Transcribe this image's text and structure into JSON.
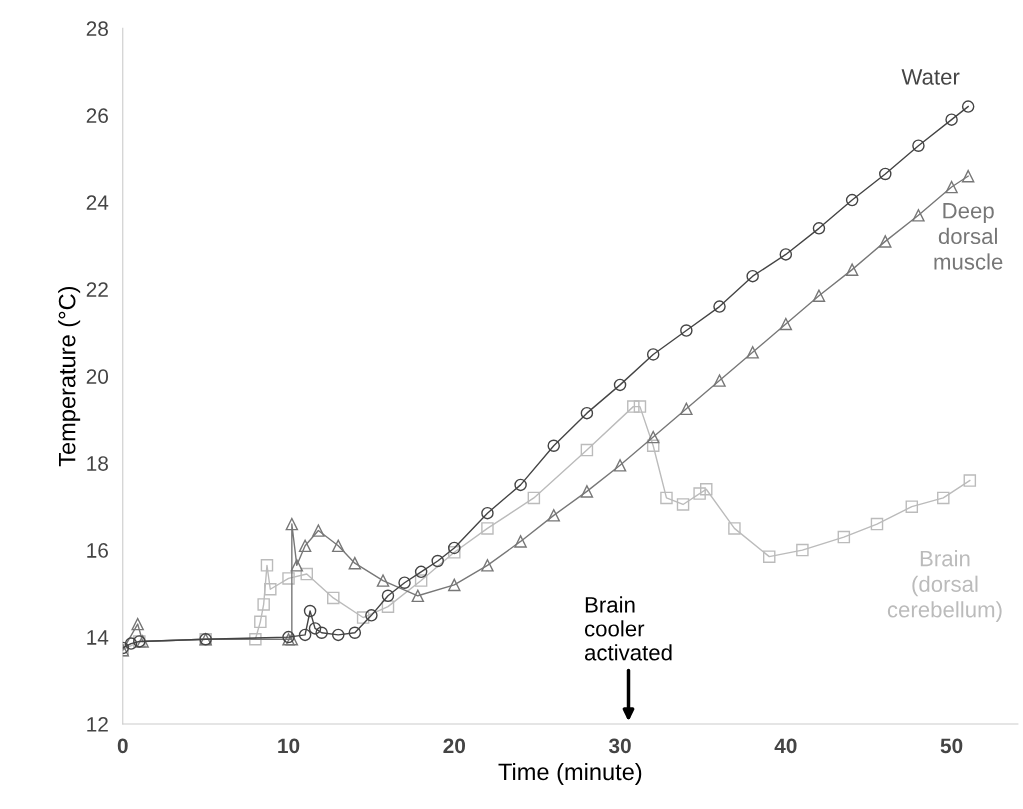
{
  "chart_data": {
    "type": "line",
    "xlabel": "Time (minute)",
    "ylabel": "Temperature (°C)",
    "xlim": [
      0,
      54
    ],
    "ylim": [
      12,
      28
    ],
    "xticks": [
      0,
      10,
      20,
      30,
      40,
      50
    ],
    "yticks": [
      12,
      14,
      16,
      18,
      20,
      22,
      24,
      26,
      28
    ],
    "grid": false,
    "legend": false,
    "series": [
      {
        "name": "Water",
        "color": "#444444",
        "marker": "circle",
        "x": [
          0,
          0.5,
          1,
          5,
          10,
          11,
          11.3,
          11.6,
          12,
          13,
          14,
          15,
          16,
          17,
          18,
          19,
          20,
          22,
          24,
          26,
          28,
          30,
          32,
          34,
          36,
          38,
          40,
          42,
          44,
          46,
          48,
          50,
          51
        ],
        "values": [
          13.75,
          13.85,
          13.9,
          13.95,
          14.0,
          14.05,
          14.6,
          14.2,
          14.1,
          14.05,
          14.1,
          14.5,
          14.95,
          15.25,
          15.5,
          15.75,
          16.05,
          16.85,
          17.5,
          18.4,
          19.15,
          19.8,
          20.5,
          21.05,
          21.6,
          22.3,
          22.8,
          23.4,
          24.05,
          24.65,
          25.3,
          25.9,
          26.2
        ]
      },
      {
        "name": "Deep dorsal muscle",
        "color": "#777777",
        "marker": "triangle",
        "x": [
          0,
          0.9,
          1.2,
          5,
          10,
          10.2,
          10.2,
          10.5,
          11,
          11.8,
          13,
          14,
          15.7,
          17.8,
          20,
          22,
          24,
          26,
          28,
          30,
          32,
          34,
          36,
          38,
          40,
          42,
          44,
          46,
          48,
          50,
          51
        ],
        "values": [
          13.7,
          14.3,
          13.9,
          13.95,
          13.95,
          13.95,
          16.6,
          15.65,
          16.1,
          16.45,
          16.1,
          15.7,
          15.3,
          14.95,
          15.2,
          15.65,
          16.2,
          16.8,
          17.35,
          17.95,
          18.6,
          19.25,
          19.9,
          20.55,
          21.2,
          21.85,
          22.45,
          23.1,
          23.7,
          24.35,
          24.6
        ]
      },
      {
        "name": "Brain (dorsal cerebellum)",
        "color": "#bbbbbb",
        "marker": "square",
        "x": [
          0,
          1,
          5,
          8,
          8.3,
          8.5,
          8.7,
          8.9,
          10,
          11.1,
          12.7,
          14.5,
          16,
          18,
          20,
          22,
          24.8,
          28,
          30.8,
          31.2,
          32,
          32.8,
          33.8,
          34.8,
          35.2,
          36.9,
          39,
          41,
          43.5,
          45.5,
          47.6,
          49.5,
          51.1
        ],
        "values": [
          13.7,
          13.9,
          13.95,
          13.95,
          14.35,
          14.75,
          15.65,
          15.1,
          15.35,
          15.45,
          14.9,
          14.45,
          14.7,
          15.3,
          15.95,
          16.5,
          17.2,
          18.3,
          19.3,
          19.3,
          18.4,
          17.2,
          17.05,
          17.3,
          17.4,
          16.5,
          15.85,
          16.0,
          16.3,
          16.6,
          17.0,
          17.2,
          17.6
        ]
      }
    ],
    "annotations": [
      "Brain\ncooler\nactivated"
    ]
  }
}
